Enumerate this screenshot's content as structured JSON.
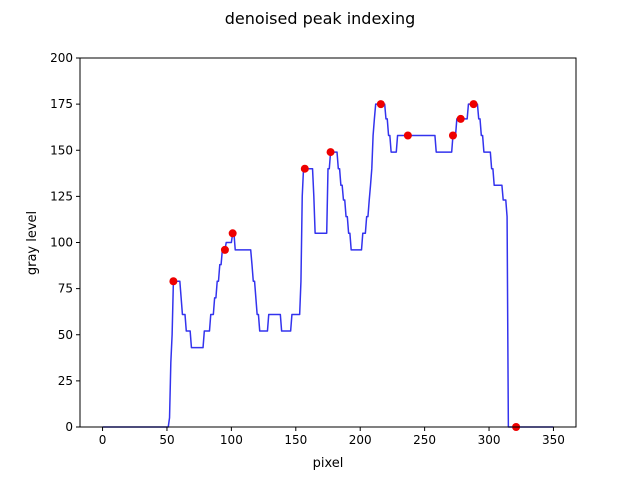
{
  "chart_data": {
    "type": "line",
    "title": "denoised peak indexing",
    "xlabel": "pixel",
    "ylabel": "gray level",
    "xlim": [
      -17.5,
      367.5
    ],
    "ylim": [
      0,
      200
    ],
    "xticks": [
      0,
      50,
      100,
      150,
      200,
      250,
      300,
      350
    ],
    "yticks": [
      0,
      25,
      50,
      75,
      100,
      125,
      150,
      175,
      200
    ],
    "grid": false,
    "legend": "none",
    "colors": {
      "line": "#3333ee",
      "peaks": "#ee0000"
    },
    "series": [
      {
        "type": "line",
        "points": [
          [
            0,
            0
          ],
          [
            51,
            0
          ],
          [
            52,
            5
          ],
          [
            53,
            35
          ],
          [
            54,
            50
          ],
          [
            55,
            79
          ],
          [
            60,
            79
          ],
          [
            61,
            70
          ],
          [
            62,
            61
          ],
          [
            64,
            61
          ],
          [
            65,
            52
          ],
          [
            68,
            52
          ],
          [
            69,
            43
          ],
          [
            78,
            43
          ],
          [
            79,
            52
          ],
          [
            83,
            52
          ],
          [
            84,
            61
          ],
          [
            86,
            61
          ],
          [
            87,
            70
          ],
          [
            88,
            70
          ],
          [
            89,
            79
          ],
          [
            90,
            79
          ],
          [
            91,
            88
          ],
          [
            92,
            88
          ],
          [
            93,
            96
          ],
          [
            95,
            96
          ],
          [
            96,
            100
          ],
          [
            100,
            100
          ],
          [
            101,
            105
          ],
          [
            102,
            105
          ],
          [
            103,
            96
          ],
          [
            115,
            96
          ],
          [
            116,
            88
          ],
          [
            117,
            79
          ],
          [
            118,
            79
          ],
          [
            119,
            70
          ],
          [
            120,
            61
          ],
          [
            121,
            61
          ],
          [
            122,
            52
          ],
          [
            128,
            52
          ],
          [
            129,
            61
          ],
          [
            138,
            61
          ],
          [
            139,
            52
          ],
          [
            146,
            52
          ],
          [
            147,
            61
          ],
          [
            153,
            61
          ],
          [
            154,
            79
          ],
          [
            155,
            125
          ],
          [
            156,
            140
          ],
          [
            163,
            140
          ],
          [
            164,
            125
          ],
          [
            165,
            105
          ],
          [
            174,
            105
          ],
          [
            175,
            140
          ],
          [
            176,
            140
          ],
          [
            177,
            149
          ],
          [
            182,
            149
          ],
          [
            183,
            140
          ],
          [
            184,
            140
          ],
          [
            185,
            131
          ],
          [
            186,
            131
          ],
          [
            187,
            123
          ],
          [
            188,
            123
          ],
          [
            189,
            114
          ],
          [
            190,
            114
          ],
          [
            191,
            105
          ],
          [
            192,
            105
          ],
          [
            193,
            96
          ],
          [
            201,
            96
          ],
          [
            202,
            105
          ],
          [
            204,
            105
          ],
          [
            205,
            114
          ],
          [
            206,
            114
          ],
          [
            207,
            123
          ],
          [
            208,
            131
          ],
          [
            209,
            140
          ],
          [
            210,
            158
          ],
          [
            211,
            167
          ],
          [
            212,
            175
          ],
          [
            219,
            175
          ],
          [
            220,
            167
          ],
          [
            221,
            167
          ],
          [
            222,
            158
          ],
          [
            223,
            158
          ],
          [
            224,
            149
          ],
          [
            228,
            149
          ],
          [
            229,
            158
          ],
          [
            258,
            158
          ],
          [
            259,
            149
          ],
          [
            271,
            149
          ],
          [
            272,
            158
          ],
          [
            274,
            158
          ],
          [
            275,
            167
          ],
          [
            283,
            167
          ],
          [
            284,
            175
          ],
          [
            291,
            175
          ],
          [
            292,
            167
          ],
          [
            293,
            167
          ],
          [
            294,
            158
          ],
          [
            295,
            158
          ],
          [
            296,
            149
          ],
          [
            301,
            149
          ],
          [
            302,
            140
          ],
          [
            303,
            140
          ],
          [
            304,
            131
          ],
          [
            310,
            131
          ],
          [
            311,
            123
          ],
          [
            313,
            123
          ],
          [
            314,
            114
          ],
          [
            315,
            0
          ],
          [
            350,
            0
          ]
        ]
      },
      {
        "type": "scatter",
        "points": [
          [
            55,
            79
          ],
          [
            95,
            96
          ],
          [
            101,
            105
          ],
          [
            157,
            140
          ],
          [
            177,
            149
          ],
          [
            216,
            175
          ],
          [
            237,
            158
          ],
          [
            272,
            158
          ],
          [
            278,
            167
          ],
          [
            288,
            175
          ],
          [
            321,
            0
          ]
        ]
      }
    ]
  }
}
